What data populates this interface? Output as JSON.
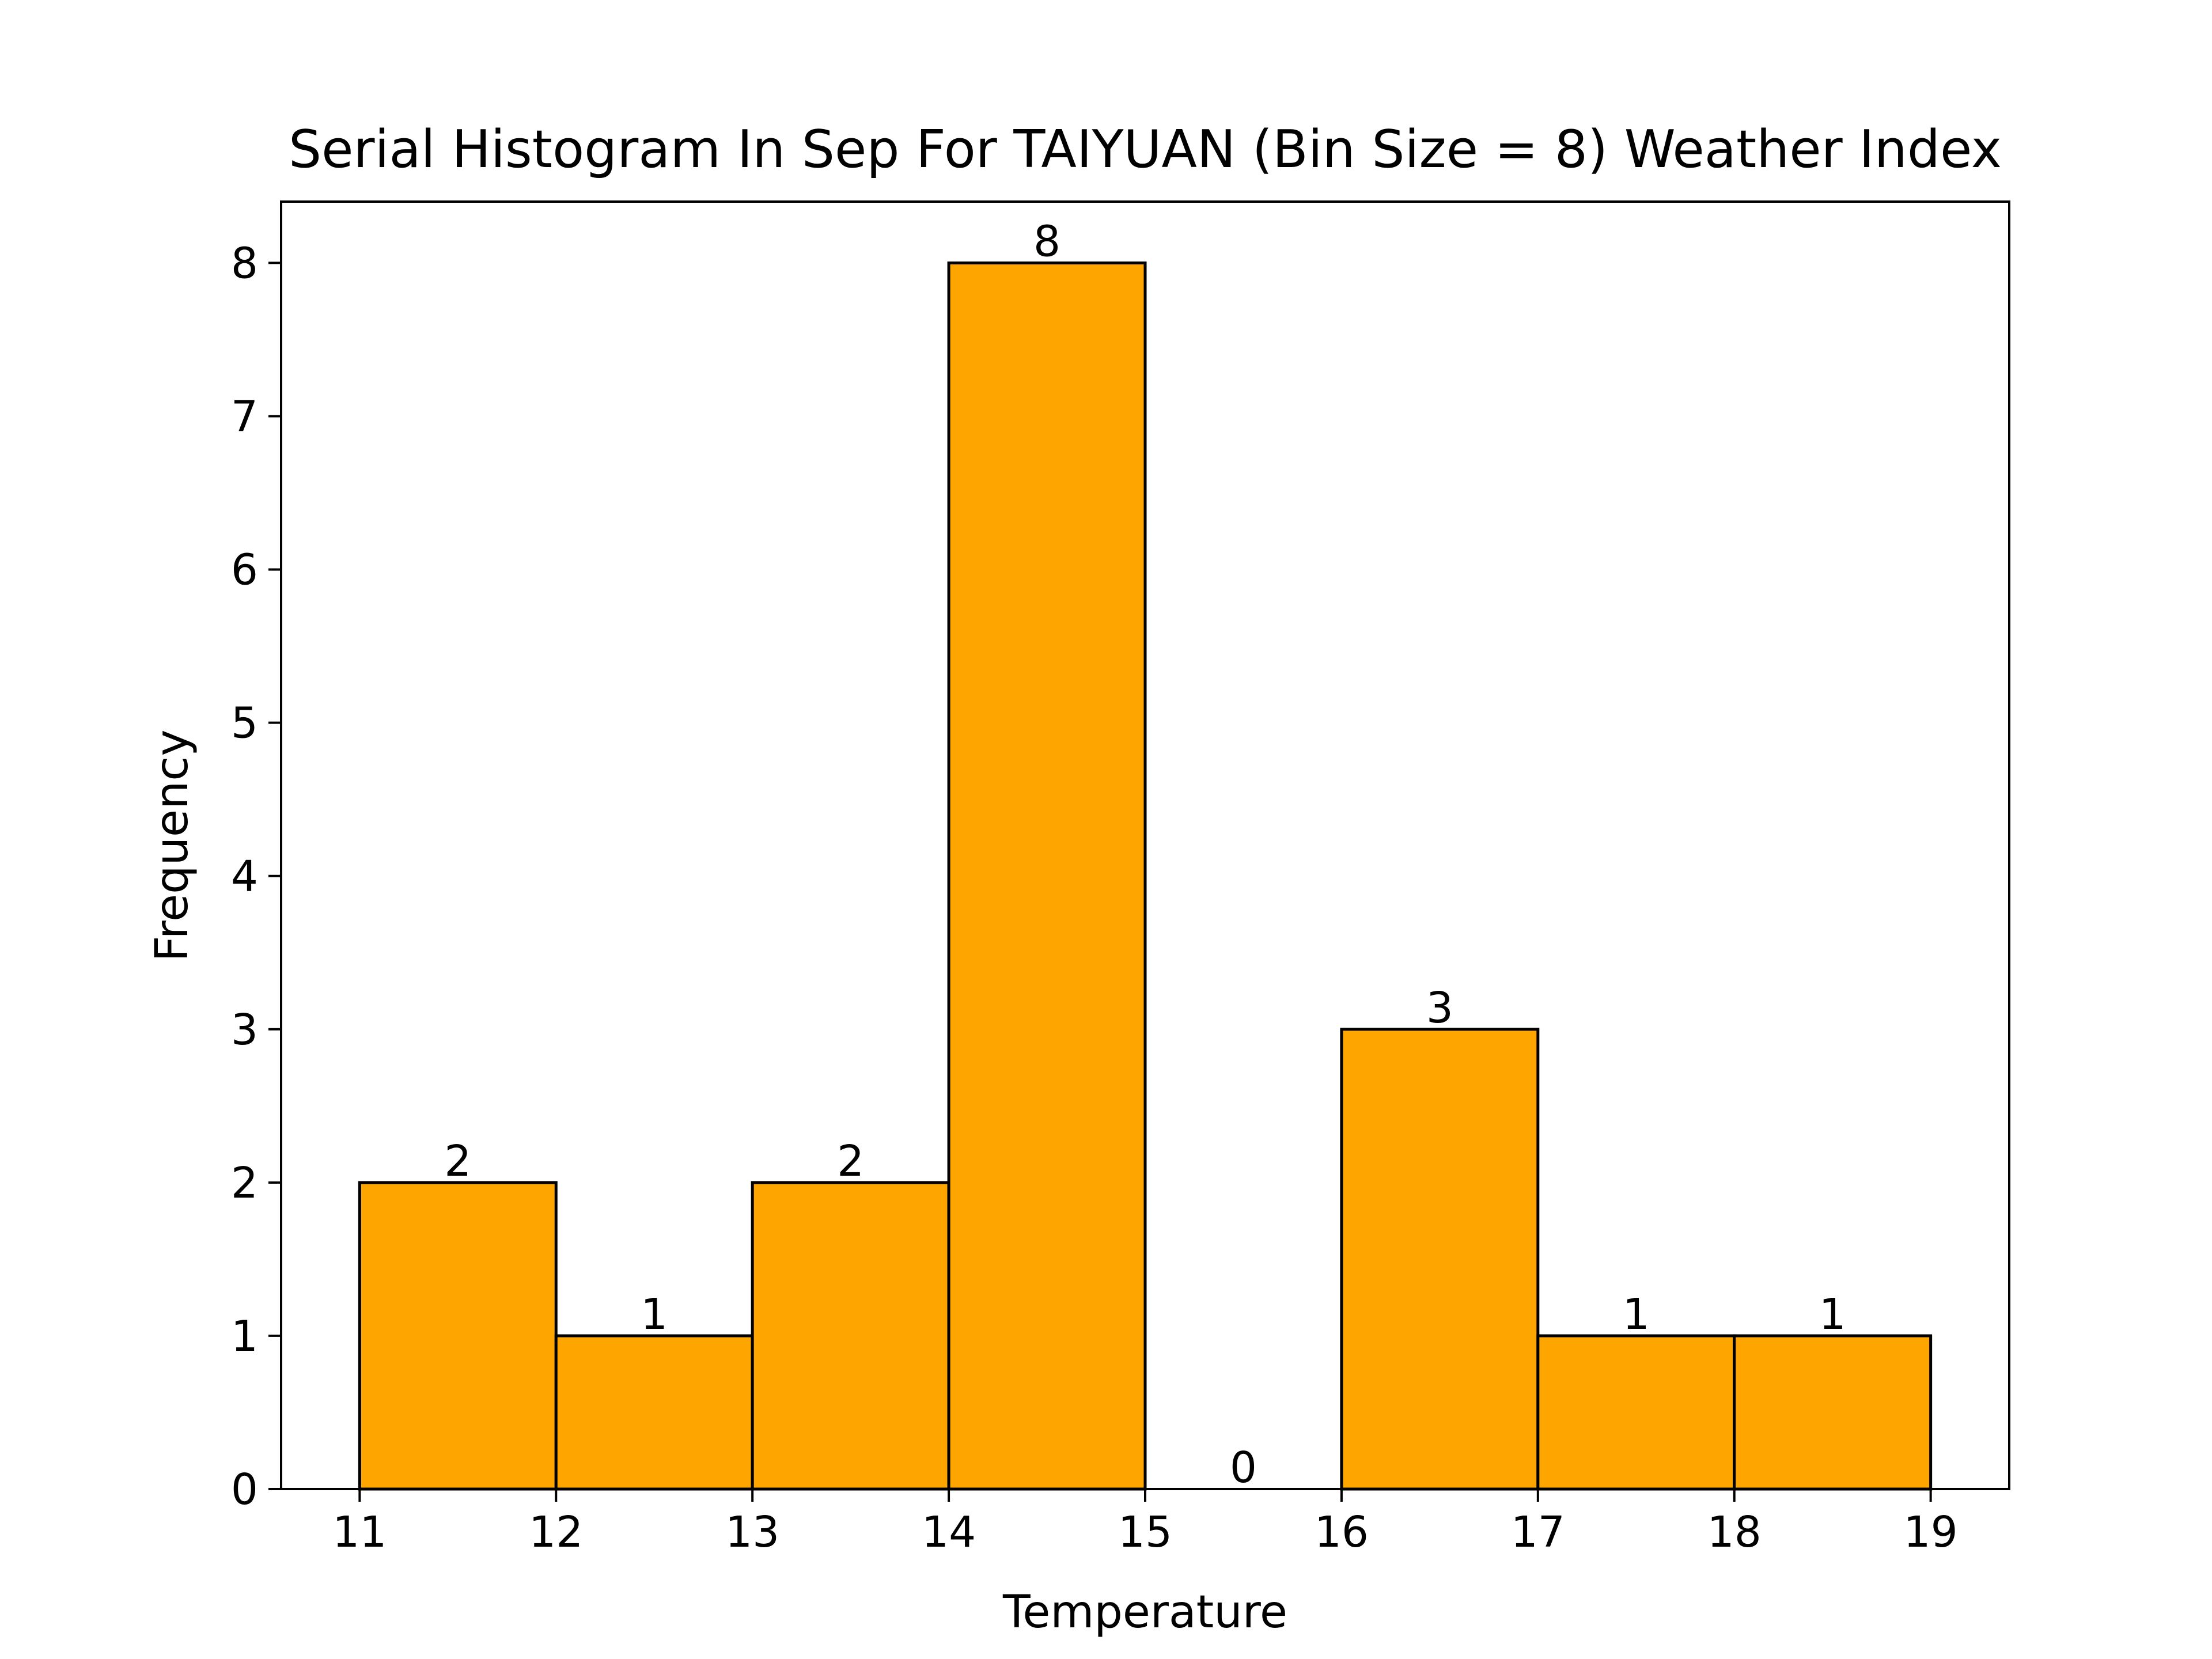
{
  "chart_data": {
    "type": "bar",
    "title": "Serial Histogram In Sep For TAIYUAN (Bin Size = 8) Weather Index",
    "xlabel": "Temperature",
    "ylabel": "Frequency",
    "bin_edges": [
      11,
      12,
      13,
      14,
      15,
      16,
      17,
      18,
      19
    ],
    "values": [
      2,
      1,
      2,
      8,
      0,
      3,
      1,
      1
    ],
    "xlim": [
      10.6,
      19.4
    ],
    "ylim": [
      0,
      8.4
    ],
    "x_ticks": [
      "11",
      "12",
      "13",
      "14",
      "15",
      "16",
      "17",
      "18",
      "19"
    ],
    "y_ticks": [
      "0",
      "1",
      "2",
      "3",
      "4",
      "5",
      "6",
      "7",
      "8"
    ],
    "bar_color": "#FFA500",
    "edge_color": "#000000",
    "grid": false,
    "legend": false
  }
}
